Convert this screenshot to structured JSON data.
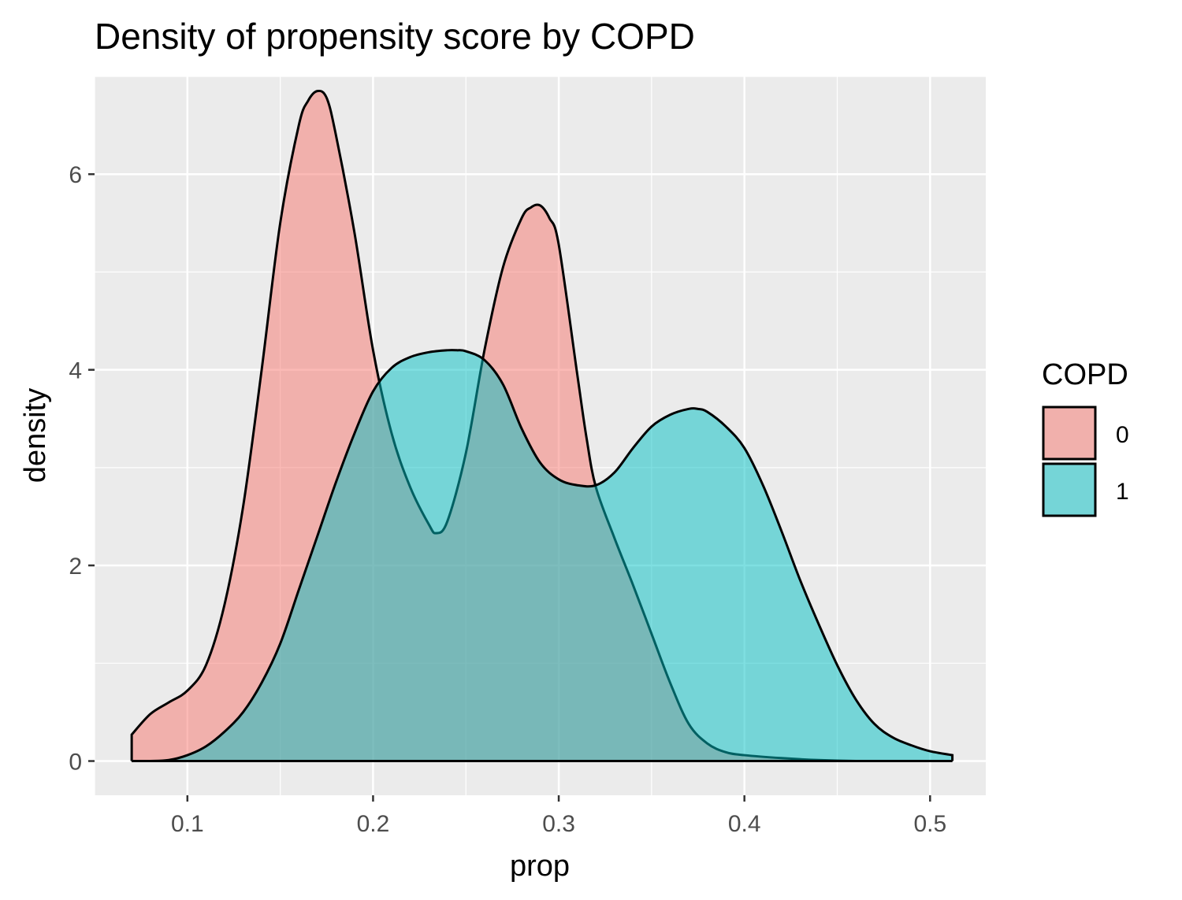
{
  "chart_data": {
    "type": "area",
    "title": "Density of propensity score by COPD",
    "xlabel": "prop",
    "ylabel": "density",
    "xlim": [
      0.05,
      0.53
    ],
    "ylim": [
      -0.35,
      7.0
    ],
    "x_ticks": [
      0.1,
      0.2,
      0.3,
      0.4,
      0.5
    ],
    "x_tick_labels": [
      "0.1",
      "0.2",
      "0.3",
      "0.4",
      "0.5"
    ],
    "y_ticks": [
      0,
      2,
      4,
      6
    ],
    "y_tick_labels": [
      "0",
      "2",
      "4",
      "6"
    ],
    "grid": true,
    "legend": {
      "title": "COPD",
      "position": "right"
    },
    "series": [
      {
        "name": "0",
        "color": "#F8766D",
        "x": [
          0.07,
          0.08,
          0.09,
          0.1,
          0.11,
          0.12,
          0.13,
          0.14,
          0.15,
          0.16,
          0.165,
          0.17,
          0.175,
          0.18,
          0.19,
          0.2,
          0.21,
          0.22,
          0.23,
          0.234,
          0.24,
          0.25,
          0.26,
          0.27,
          0.28,
          0.285,
          0.29,
          0.295,
          0.3,
          0.31,
          0.315,
          0.32,
          0.33,
          0.34,
          0.35,
          0.36,
          0.37,
          0.38,
          0.39,
          0.4,
          0.42,
          0.44,
          0.46,
          0.48,
          0.5,
          0.512
        ],
        "y": [
          0.27,
          0.48,
          0.6,
          0.72,
          0.98,
          1.6,
          2.6,
          4.0,
          5.5,
          6.5,
          6.75,
          6.85,
          6.78,
          6.4,
          5.4,
          4.2,
          3.35,
          2.8,
          2.42,
          2.33,
          2.45,
          3.15,
          4.2,
          5.05,
          5.55,
          5.66,
          5.68,
          5.55,
          5.28,
          3.95,
          3.3,
          2.8,
          2.28,
          1.8,
          1.3,
          0.8,
          0.38,
          0.18,
          0.09,
          0.06,
          0.03,
          0.01,
          0.0,
          0.0,
          0.0,
          0.0
        ]
      },
      {
        "name": "1",
        "color": "#00BFC4",
        "x": [
          0.07,
          0.08,
          0.09,
          0.1,
          0.11,
          0.12,
          0.13,
          0.14,
          0.15,
          0.16,
          0.17,
          0.18,
          0.19,
          0.2,
          0.21,
          0.22,
          0.23,
          0.24,
          0.245,
          0.25,
          0.26,
          0.27,
          0.28,
          0.29,
          0.3,
          0.31,
          0.32,
          0.33,
          0.34,
          0.35,
          0.36,
          0.37,
          0.375,
          0.38,
          0.39,
          0.4,
          0.41,
          0.42,
          0.43,
          0.44,
          0.45,
          0.46,
          0.47,
          0.48,
          0.49,
          0.5,
          0.512
        ],
        "y": [
          0.0,
          0.0,
          0.01,
          0.06,
          0.15,
          0.3,
          0.5,
          0.8,
          1.2,
          1.75,
          2.3,
          2.85,
          3.35,
          3.78,
          4.02,
          4.13,
          4.18,
          4.2,
          4.2,
          4.19,
          4.1,
          3.85,
          3.4,
          3.05,
          2.88,
          2.82,
          2.82,
          2.95,
          3.2,
          3.42,
          3.54,
          3.6,
          3.6,
          3.57,
          3.42,
          3.2,
          2.82,
          2.35,
          1.85,
          1.4,
          0.98,
          0.63,
          0.38,
          0.24,
          0.16,
          0.1,
          0.06
        ]
      }
    ]
  }
}
